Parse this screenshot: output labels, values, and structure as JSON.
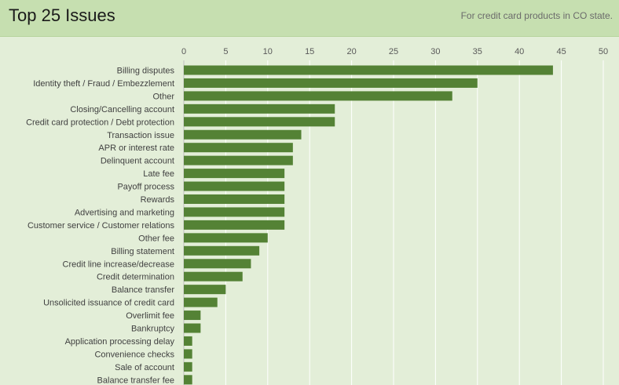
{
  "header": {
    "title": "Top 25 Issues",
    "subtitle": "For credit card products in CO state."
  },
  "colors": {
    "bar": "#548235",
    "header_bg": "#c6dfb0",
    "plot_bg": "#e3eed8",
    "grid": "#ffffff",
    "tick_text": "#595959",
    "label_text": "#404040"
  },
  "chart_data": {
    "type": "bar",
    "orientation": "horizontal",
    "categories": [
      "Billing disputes",
      "Identity theft / Fraud / Embezzlement",
      "Other",
      "Closing/Cancelling account",
      "Credit card protection / Debt protection",
      "Transaction issue",
      "APR or interest rate",
      "Delinquent account",
      "Late fee",
      "Payoff process",
      "Rewards",
      "Advertising and marketing",
      "Customer service / Customer relations",
      "Other fee",
      "Billing statement",
      "Credit line increase/decrease",
      "Credit determination",
      "Balance transfer",
      "Unsolicited issuance of credit card",
      "Overlimit fee",
      "Bankruptcy",
      "Application processing delay",
      "Convenience checks",
      "Sale of account",
      "Balance transfer fee"
    ],
    "values": [
      44,
      35,
      32,
      18,
      18,
      14,
      13,
      13,
      12,
      12,
      12,
      12,
      12,
      10,
      9,
      8,
      7,
      5,
      4,
      2,
      2,
      1,
      1,
      1,
      1
    ],
    "xlim": [
      0,
      50
    ],
    "xticks": [
      0,
      5,
      10,
      15,
      20,
      25,
      30,
      35,
      40,
      45,
      50
    ],
    "axis_position": "top",
    "grid": true
  }
}
